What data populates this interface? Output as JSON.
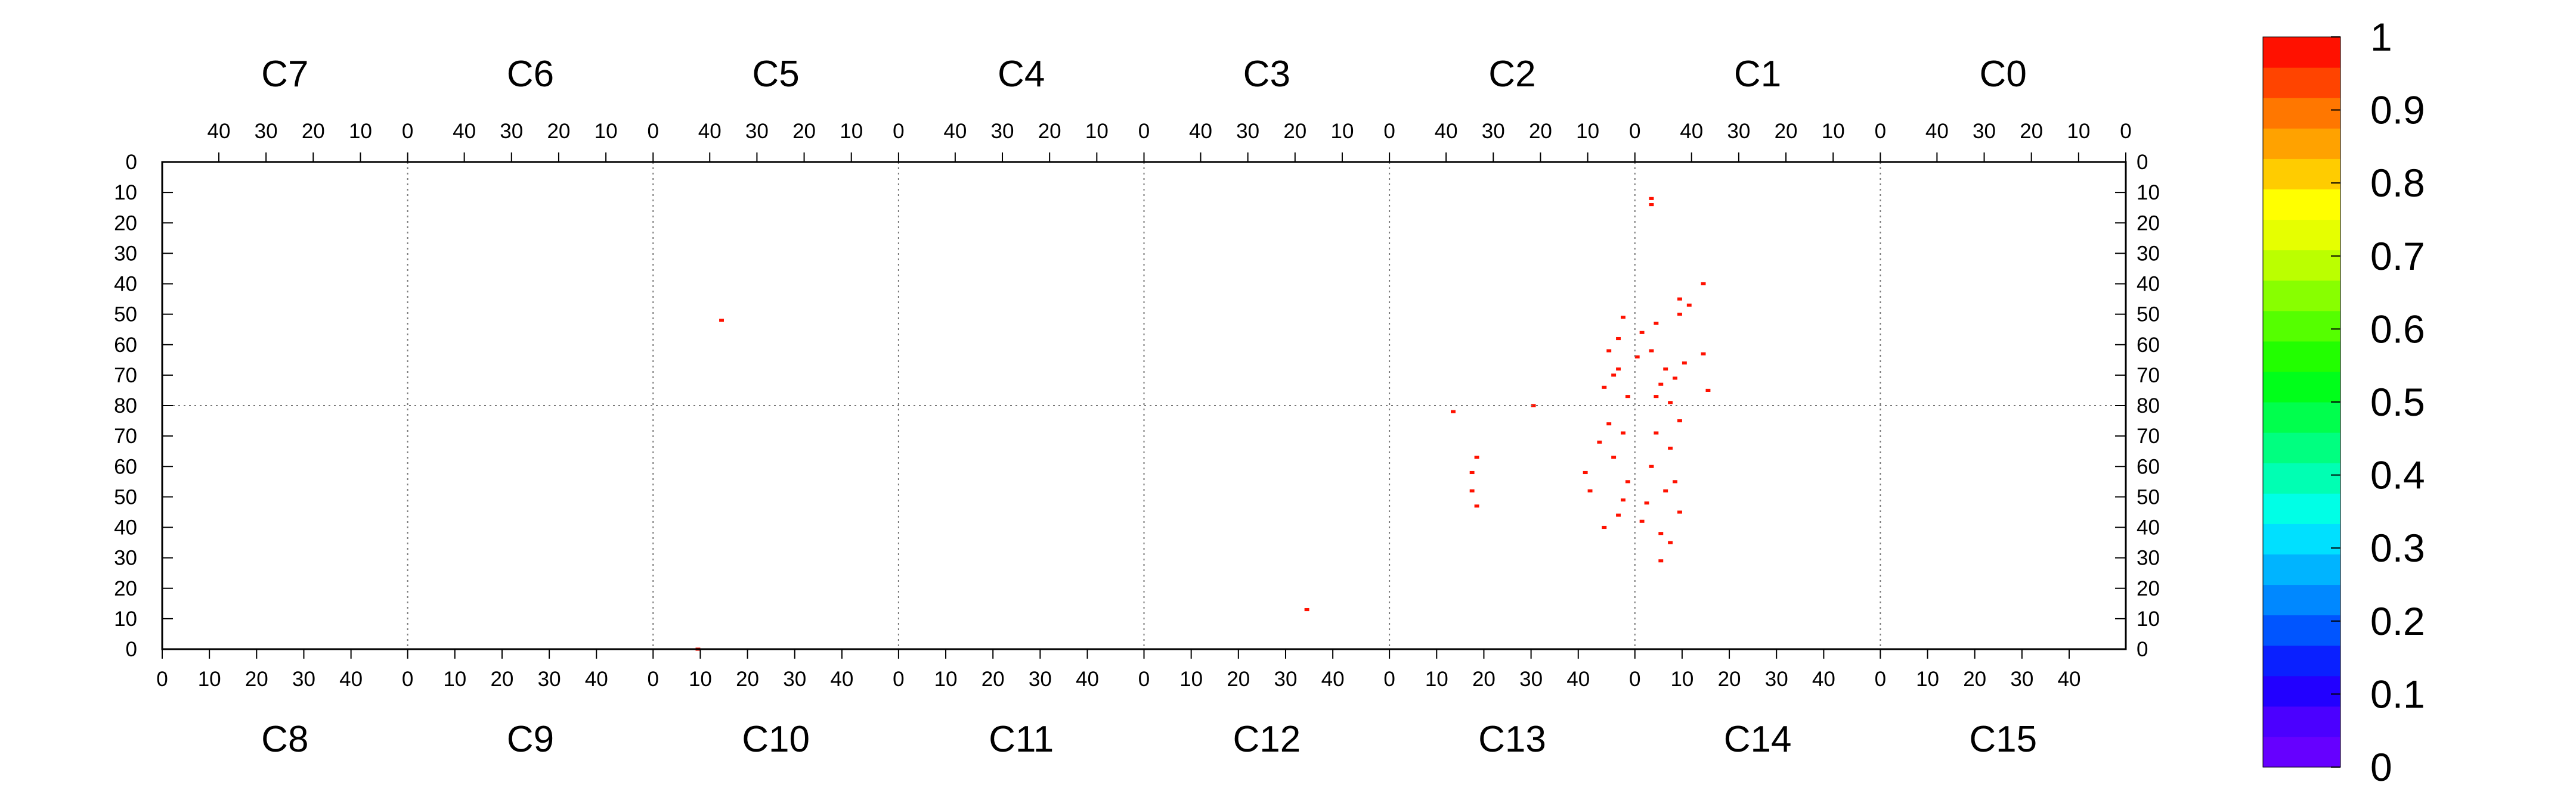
{
  "chart_data": {
    "type": "heatmap",
    "title": "",
    "colorbar": {
      "min": 0,
      "max": 1,
      "tick_labels": [
        "1",
        "0.9",
        "0.8",
        "0.7",
        "0.6",
        "0.5",
        "0.4",
        "0.3",
        "0.2",
        "0.1",
        "0"
      ],
      "colors": [
        "#6600ff",
        "#4b00ff",
        "#2200ff",
        "#0a20ff",
        "#0055ff",
        "#0088ff",
        "#00b4ff",
        "#00e0ff",
        "#00ffe6",
        "#00ffb3",
        "#00ff80",
        "#00ff4d",
        "#00ff1a",
        "#22ff00",
        "#55ff00",
        "#88ff00",
        "#bbff00",
        "#e6ff00",
        "#ffff00",
        "#ffcc00",
        "#ffa200",
        "#ff7700",
        "#ff4400",
        "#ff1100"
      ]
    },
    "top_chips": [
      "C7",
      "C6",
      "C5",
      "C4",
      "C3",
      "C2",
      "C1",
      "C0"
    ],
    "bottom_chips": [
      "C8",
      "C9",
      "C10",
      "C11",
      "C12",
      "C13",
      "C14",
      "C15"
    ],
    "top_x_ticks": [
      "40",
      "30",
      "20",
      "10",
      "0"
    ],
    "bottom_x_ticks": [
      "0",
      "10",
      "20",
      "30",
      "40"
    ],
    "y_ticks_upper": [
      "0",
      "10",
      "20",
      "30",
      "40",
      "50",
      "60",
      "70",
      "80"
    ],
    "y_ticks_lower": [
      "70",
      "60",
      "50",
      "40",
      "30",
      "20",
      "10",
      "0"
    ],
    "columns_per_chip": 52,
    "rows_per_half": 80,
    "hit_value": 1,
    "hits_top": [
      {
        "chip": "C5",
        "col": 37,
        "row": 52
      },
      {
        "chip": "C2",
        "col": 21,
        "row": 80
      },
      {
        "chip": "C1",
        "col": 48,
        "row": 14
      },
      {
        "chip": "C1",
        "col": 48,
        "row": 12
      },
      {
        "chip": "C1",
        "col": 37,
        "row": 40
      },
      {
        "chip": "C2",
        "col": 2,
        "row": 51
      },
      {
        "chip": "C1",
        "col": 42,
        "row": 45
      },
      {
        "chip": "C1",
        "col": 40,
        "row": 47
      },
      {
        "chip": "C1",
        "col": 42,
        "row": 50
      },
      {
        "chip": "C1",
        "col": 47,
        "row": 53
      },
      {
        "chip": "C1",
        "col": 50,
        "row": 56
      },
      {
        "chip": "C2",
        "col": 3,
        "row": 58
      },
      {
        "chip": "C2",
        "col": 5,
        "row": 62
      },
      {
        "chip": "C1",
        "col": 48,
        "row": 62
      },
      {
        "chip": "C1",
        "col": 51,
        "row": 64
      },
      {
        "chip": "C1",
        "col": 41,
        "row": 66
      },
      {
        "chip": "C1",
        "col": 37,
        "row": 63
      },
      {
        "chip": "C1",
        "col": 45,
        "row": 68
      },
      {
        "chip": "C1",
        "col": 43,
        "row": 71
      },
      {
        "chip": "C1",
        "col": 46,
        "row": 73
      },
      {
        "chip": "C1",
        "col": 36,
        "row": 75
      },
      {
        "chip": "C2",
        "col": 4,
        "row": 70
      },
      {
        "chip": "C2",
        "col": 6,
        "row": 74
      },
      {
        "chip": "C1",
        "col": 47,
        "row": 77
      },
      {
        "chip": "C1",
        "col": 44,
        "row": 79
      },
      {
        "chip": "C2",
        "col": 1,
        "row": 77
      },
      {
        "chip": "C2",
        "col": 3,
        "row": 68
      }
    ],
    "hits_bottom": [
      {
        "chip": "C10",
        "col": 9,
        "row": 0
      },
      {
        "chip": "C12",
        "col": 34,
        "row": 13
      },
      {
        "chip": "C13",
        "col": 13,
        "row": 78
      },
      {
        "chip": "C13",
        "col": 18,
        "row": 63
      },
      {
        "chip": "C13",
        "col": 17,
        "row": 58
      },
      {
        "chip": "C13",
        "col": 17,
        "row": 52
      },
      {
        "chip": "C13",
        "col": 18,
        "row": 47
      },
      {
        "chip": "C13",
        "col": 48,
        "row": 44
      },
      {
        "chip": "C13",
        "col": 45,
        "row": 40
      },
      {
        "chip": "C13",
        "col": 49,
        "row": 49
      },
      {
        "chip": "C13",
        "col": 42,
        "row": 52
      },
      {
        "chip": "C14",
        "col": 2,
        "row": 48
      },
      {
        "chip": "C14",
        "col": 5,
        "row": 38
      },
      {
        "chip": "C14",
        "col": 7,
        "row": 35
      },
      {
        "chip": "C14",
        "col": 5,
        "row": 29
      },
      {
        "chip": "C14",
        "col": 9,
        "row": 45
      },
      {
        "chip": "C14",
        "col": 8,
        "row": 55
      },
      {
        "chip": "C14",
        "col": 3,
        "row": 60
      },
      {
        "chip": "C13",
        "col": 47,
        "row": 63
      },
      {
        "chip": "C13",
        "col": 44,
        "row": 68
      },
      {
        "chip": "C13",
        "col": 46,
        "row": 74
      },
      {
        "chip": "C13",
        "col": 49,
        "row": 71
      },
      {
        "chip": "C14",
        "col": 7,
        "row": 66
      },
      {
        "chip": "C14",
        "col": 4,
        "row": 71
      },
      {
        "chip": "C14",
        "col": 9,
        "row": 75
      },
      {
        "chip": "C13",
        "col": 41,
        "row": 58
      },
      {
        "chip": "C13",
        "col": 50,
        "row": 55
      },
      {
        "chip": "C14",
        "col": 6,
        "row": 52
      },
      {
        "chip": "C14",
        "col": 1,
        "row": 42
      }
    ]
  }
}
